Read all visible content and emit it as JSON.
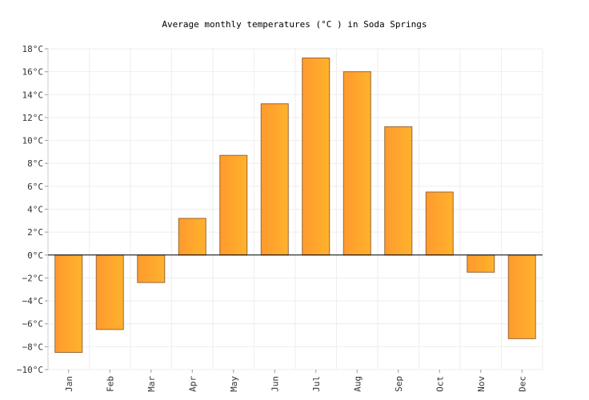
{
  "chart_data": {
    "type": "bar",
    "title": "Average monthly temperatures (°C ) in Soda Springs",
    "xlabel": "",
    "ylabel": "",
    "categories": [
      "Jan",
      "Feb",
      "Mar",
      "Apr",
      "May",
      "Jun",
      "Jul",
      "Aug",
      "Sep",
      "Oct",
      "Nov",
      "Dec"
    ],
    "values": [
      -8.5,
      -6.5,
      -2.4,
      3.2,
      8.7,
      13.2,
      17.2,
      16.0,
      11.2,
      5.5,
      -1.5,
      -7.3
    ],
    "ylim": [
      -10,
      18
    ],
    "yticks": [
      "18°C",
      "16°C",
      "14°C",
      "12°C",
      "10°C",
      "8°C",
      "6°C",
      "4°C",
      "2°C",
      "0°C",
      "−2°C",
      "−4°C",
      "−6°C",
      "−8°C",
      "−10°C"
    ],
    "grid": true,
    "bar_color": "#ffb22c",
    "bar_color_dark": "#ff9a2e",
    "bar_border": "#996633",
    "zero_line_color": "#000000",
    "grid_color": "#eeeeee"
  }
}
